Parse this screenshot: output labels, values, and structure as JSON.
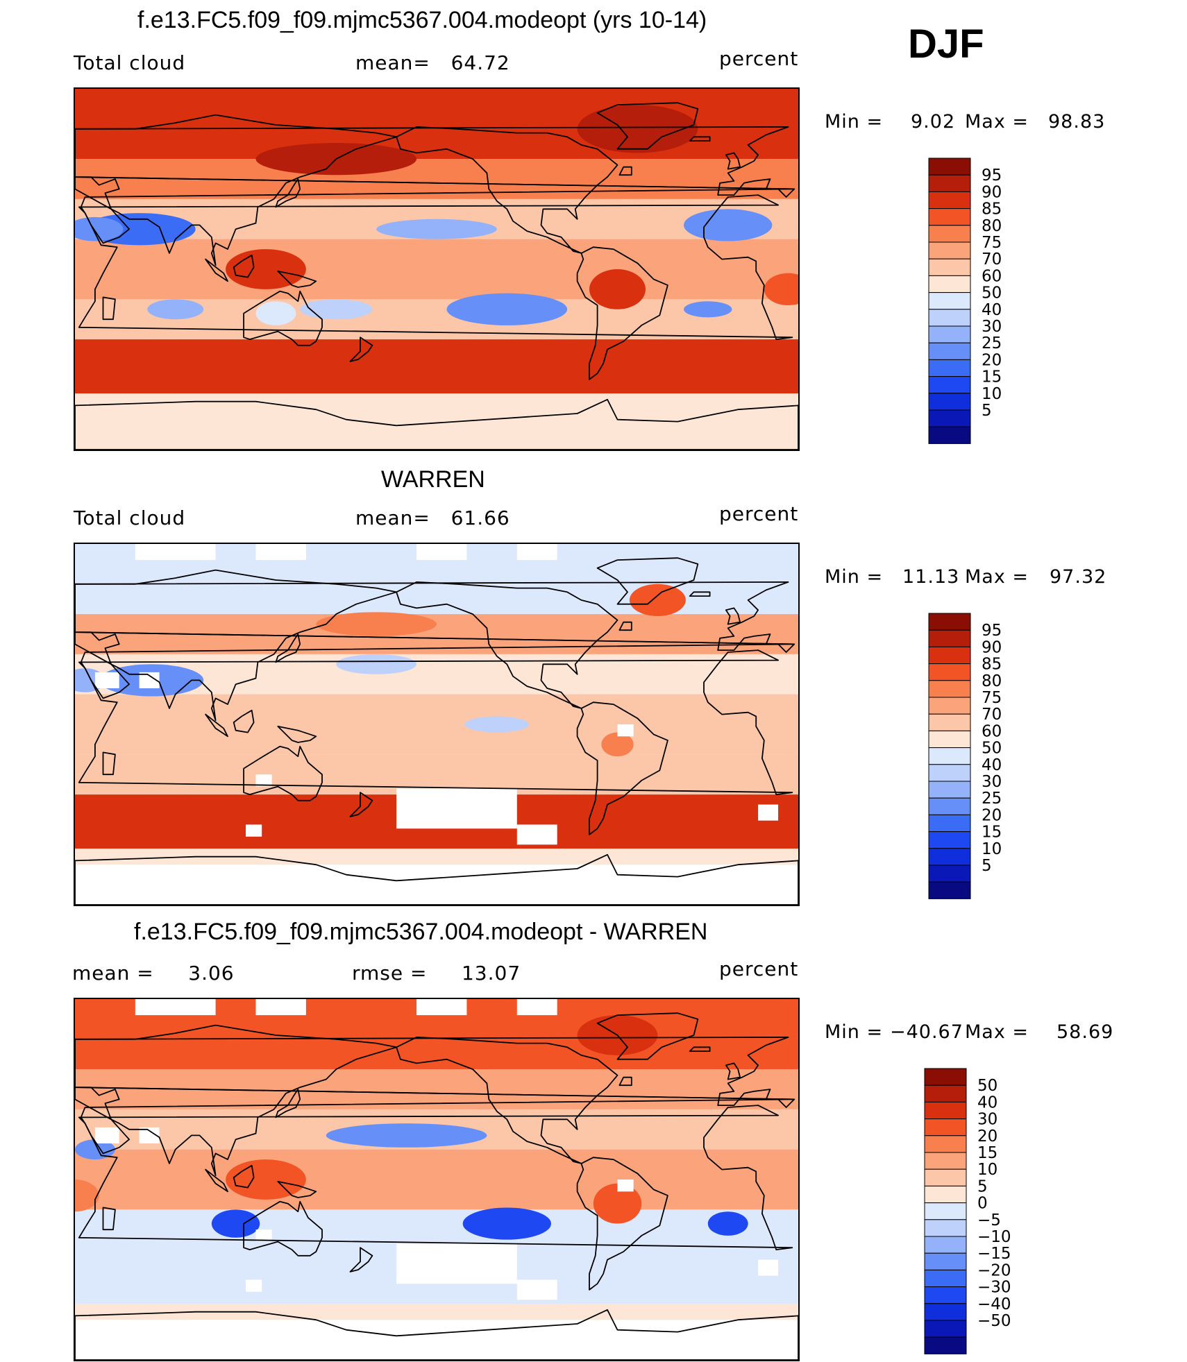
{
  "season": "DJF",
  "units": "percent",
  "colors": {
    "cloud_scale": [
      "#080a82",
      "#0a18b8",
      "#0f2fdc",
      "#1e48f2",
      "#3a6cf6",
      "#6690f8",
      "#94b2f9",
      "#bdd1fb",
      "#dce8fc",
      "#fde6d6",
      "#fcc6a8",
      "#fba47c",
      "#f8804f",
      "#f25426",
      "#d9300f",
      "#b51e0a",
      "#8a0e04"
    ],
    "diff_scale": [
      "#080a82",
      "#0a18b8",
      "#0f2fdc",
      "#1e48f2",
      "#3a6cf6",
      "#6690f8",
      "#94b2f9",
      "#bdd1fb",
      "#dce8fc",
      "#fde6d6",
      "#fcc6a8",
      "#fba47c",
      "#f8804f",
      "#f25426",
      "#d9300f",
      "#b51e0a",
      "#8a0e04"
    ],
    "missing": "#ffffff",
    "coastline": "#000000"
  },
  "panels": [
    {
      "id": "model",
      "title": "f.e13.FC5.f09_f09.mjmc5367.004.modeopt (yrs 10-14)",
      "left_label": "Total cloud",
      "center_label": "mean=   64.72",
      "right_label": "percent",
      "min_label": "Min =",
      "min_value": "9.02",
      "max_label": "Max =",
      "max_value": "98.83",
      "mean": 64.72,
      "colorbar": {
        "labels": [
          "95",
          "90",
          "85",
          "80",
          "75",
          "70",
          "60",
          "50",
          "40",
          "30",
          "25",
          "20",
          "15",
          "10",
          "5"
        ]
      }
    },
    {
      "id": "obs",
      "title": "WARREN",
      "left_label": "Total cloud",
      "center_label": "mean=   61.66",
      "right_label": "percent",
      "min_label": "Min =",
      "min_value": "11.13",
      "max_label": "Max =",
      "max_value": "97.32",
      "mean": 61.66,
      "colorbar": {
        "labels": [
          "95",
          "90",
          "85",
          "80",
          "75",
          "70",
          "60",
          "50",
          "40",
          "30",
          "25",
          "20",
          "15",
          "10",
          "5"
        ]
      }
    },
    {
      "id": "diff",
      "title": "f.e13.FC5.f09_f09.mjmc5367.004.modeopt - WARREN",
      "left_label": "mean =     3.06",
      "center_label": "rmse =     13.07",
      "right_label": "percent",
      "min_label": "Min =",
      "min_value": "−40.67",
      "max_label": "Max =",
      "max_value": "58.69",
      "mean": 3.06,
      "rmse": 13.07,
      "colorbar": {
        "labels": [
          "50",
          "40",
          "30",
          "20",
          "15",
          "10",
          "5",
          "0",
          "−5",
          "−10",
          "−15",
          "−20",
          "−30",
          "−40",
          "−50"
        ]
      }
    }
  ]
}
